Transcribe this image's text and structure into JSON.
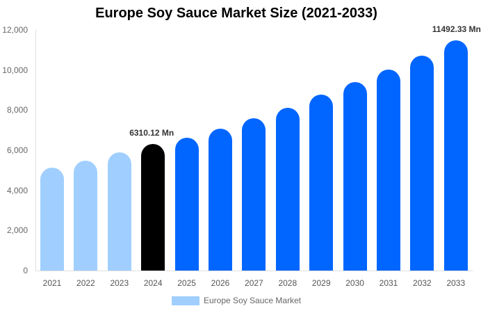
{
  "chart_data": {
    "type": "bar",
    "title": "Europe Soy Sauce Market Size (2021-2033)",
    "xlabel": "",
    "ylabel": "",
    "ylim": [
      0,
      12000
    ],
    "yticks": [
      "0",
      "2,000",
      "4,000",
      "6,000",
      "8,000",
      "10,000",
      "12,000"
    ],
    "categories": [
      "2021",
      "2022",
      "2023",
      "2024",
      "2025",
      "2026",
      "2027",
      "2028",
      "2029",
      "2030",
      "2031",
      "2032",
      "2033"
    ],
    "series": [
      {
        "name": "Europe Soy Sauce Market",
        "values": [
          5130,
          5480,
          5900,
          6310.12,
          6620,
          7080,
          7600,
          8120,
          8780,
          9400,
          10020,
          10720,
          11492.33
        ]
      }
    ],
    "bar_colors": [
      "#a0cfff",
      "#a0cfff",
      "#a0cfff",
      "#000000",
      "#0066ff",
      "#0066ff",
      "#0066ff",
      "#0066ff",
      "#0066ff",
      "#0066ff",
      "#0066ff",
      "#0066ff",
      "#0066ff"
    ],
    "annotations": [
      {
        "category": "2024",
        "text": "6310.12 Mn"
      },
      {
        "category": "2033",
        "text": "11492.33 Mn"
      }
    ],
    "legend": {
      "position": "bottom",
      "entries": [
        "Europe Soy Sauce Market"
      ]
    },
    "grid": false
  },
  "legend": {
    "label": "Europe Soy Sauce Market",
    "color": "#a0cfff"
  }
}
